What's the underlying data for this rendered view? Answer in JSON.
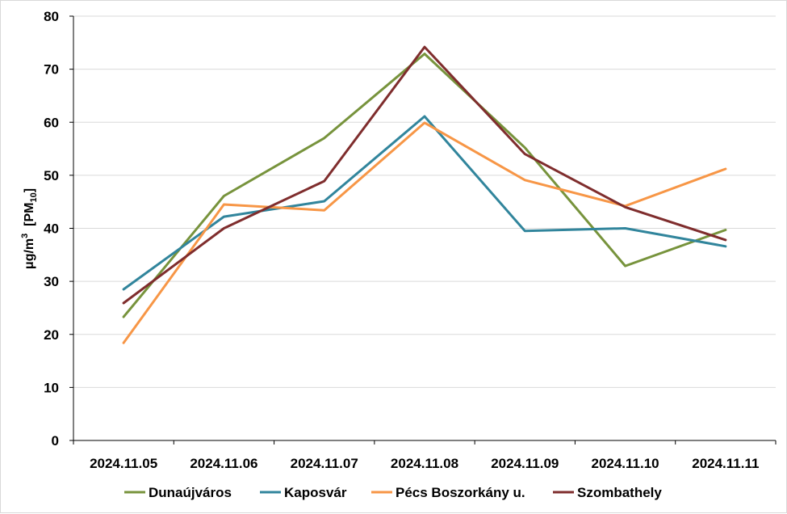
{
  "chart_data": {
    "type": "line",
    "title": "",
    "xlabel": "",
    "ylabel": {
      "prefix": "μg/m",
      "superscript": "3",
      "bracket_open": "[PM",
      "subscript": "10",
      "bracket_close": "]"
    },
    "ylim": [
      0,
      80
    ],
    "yticks": [
      "0",
      "10",
      "20",
      "30",
      "40",
      "50",
      "60",
      "70",
      "80"
    ],
    "categories": [
      "2024.11.05",
      "2024.11.06",
      "2024.11.07",
      "2024.11.08",
      "2024.11.09",
      "2024.11.10",
      "2024.11.11"
    ],
    "grid": "horizontal",
    "legend_position": "bottom",
    "series": [
      {
        "name": "Dunaújváros",
        "color": "#77933c",
        "values": [
          23.3,
          46.1,
          57.0,
          72.9,
          55.2,
          32.9,
          39.7
        ]
      },
      {
        "name": "Kaposvár",
        "color": "#31859c",
        "values": [
          28.5,
          42.2,
          45.1,
          61.1,
          39.5,
          40.0,
          36.6
        ]
      },
      {
        "name": "Pécs Boszorkány u.",
        "color": "#f79646",
        "values": [
          18.4,
          44.5,
          43.4,
          59.9,
          49.1,
          44.2,
          51.2
        ]
      },
      {
        "name": "Szombathely",
        "color": "#7f2d2d",
        "values": [
          25.9,
          40.0,
          48.9,
          74.2,
          54.0,
          44.0,
          37.8
        ]
      }
    ]
  }
}
